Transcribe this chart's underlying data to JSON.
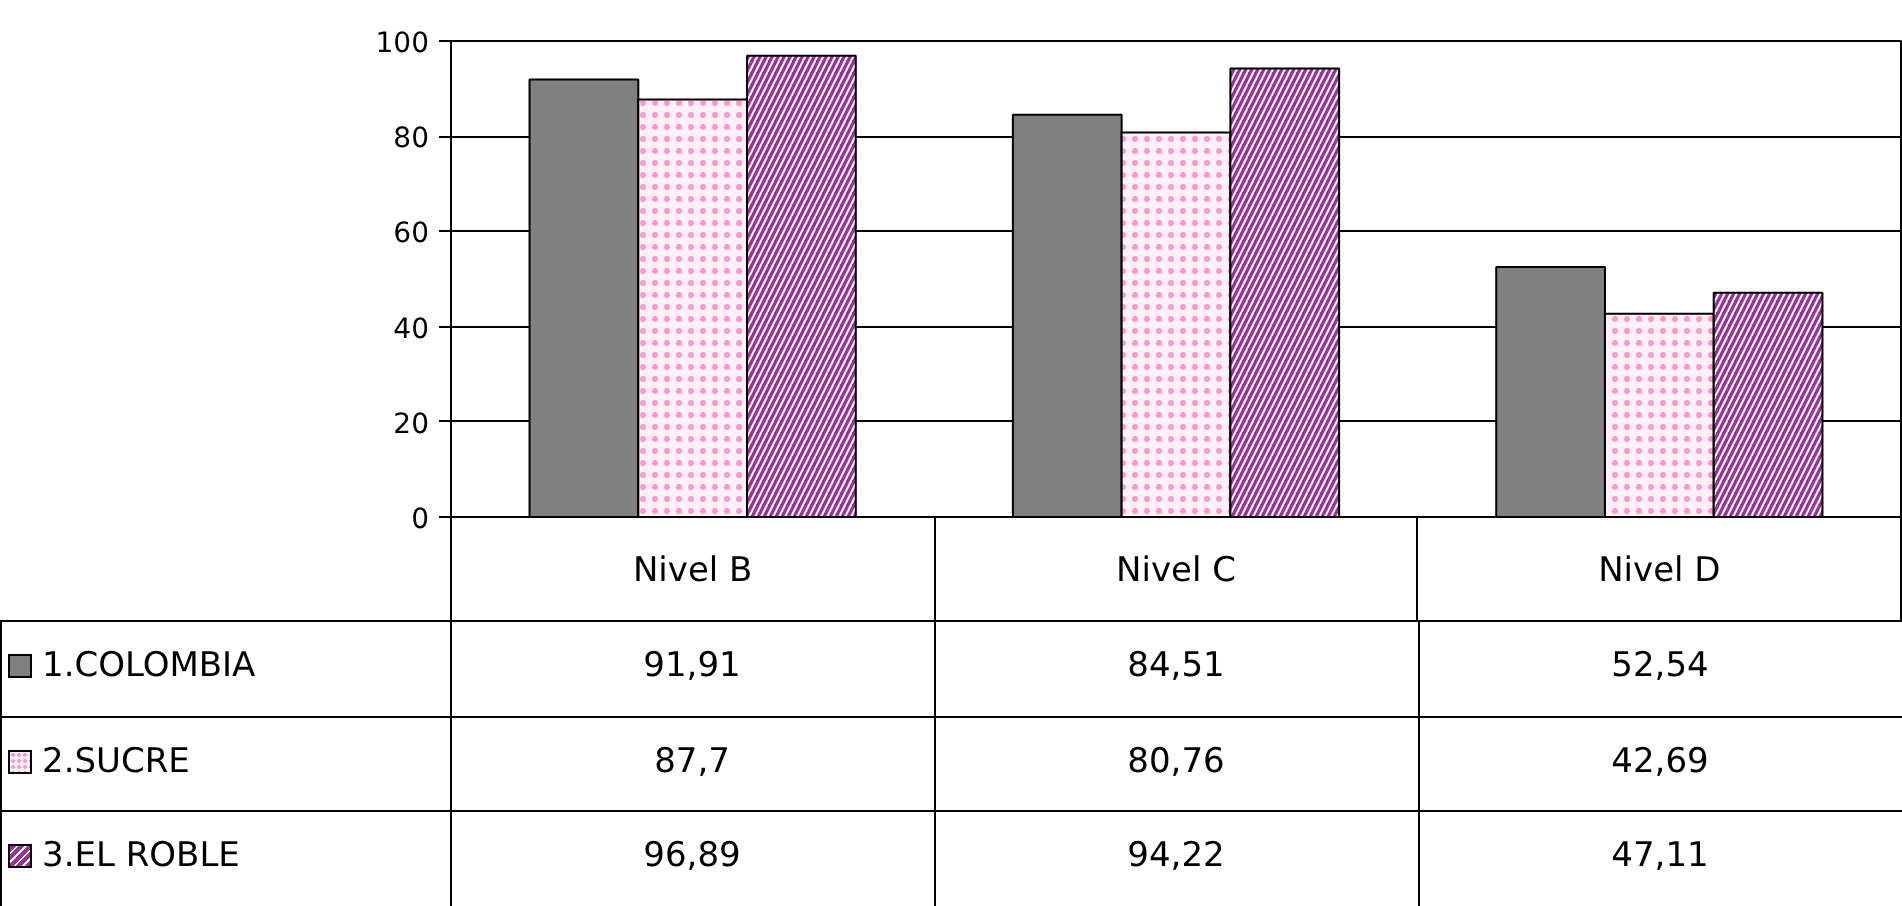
{
  "chart_data": {
    "type": "bar",
    "categories": [
      "Nivel B",
      "Nivel C",
      "Nivel D"
    ],
    "series": [
      {
        "name": "1.COLOMBIA",
        "color": "#808080",
        "values": [
          91.91,
          84.51,
          52.54
        ]
      },
      {
        "name": "2.SUCRE",
        "color": "#fff0f8",
        "values": [
          87.7,
          80.76,
          42.69
        ]
      },
      {
        "name": "3.EL ROBLE",
        "color": "#993399",
        "values": [
          96.89,
          94.22,
          47.11
        ]
      }
    ],
    "value_labels": [
      [
        "91,91",
        "84,51",
        "52,54"
      ],
      [
        "87,7",
        "80,76",
        "42,69"
      ],
      [
        "96,89",
        "94,22",
        "47,11"
      ]
    ],
    "ylim": [
      0,
      100
    ],
    "yticks": [
      0,
      20,
      40,
      60,
      80,
      100
    ],
    "grid": "y",
    "legend": "bottom left"
  }
}
